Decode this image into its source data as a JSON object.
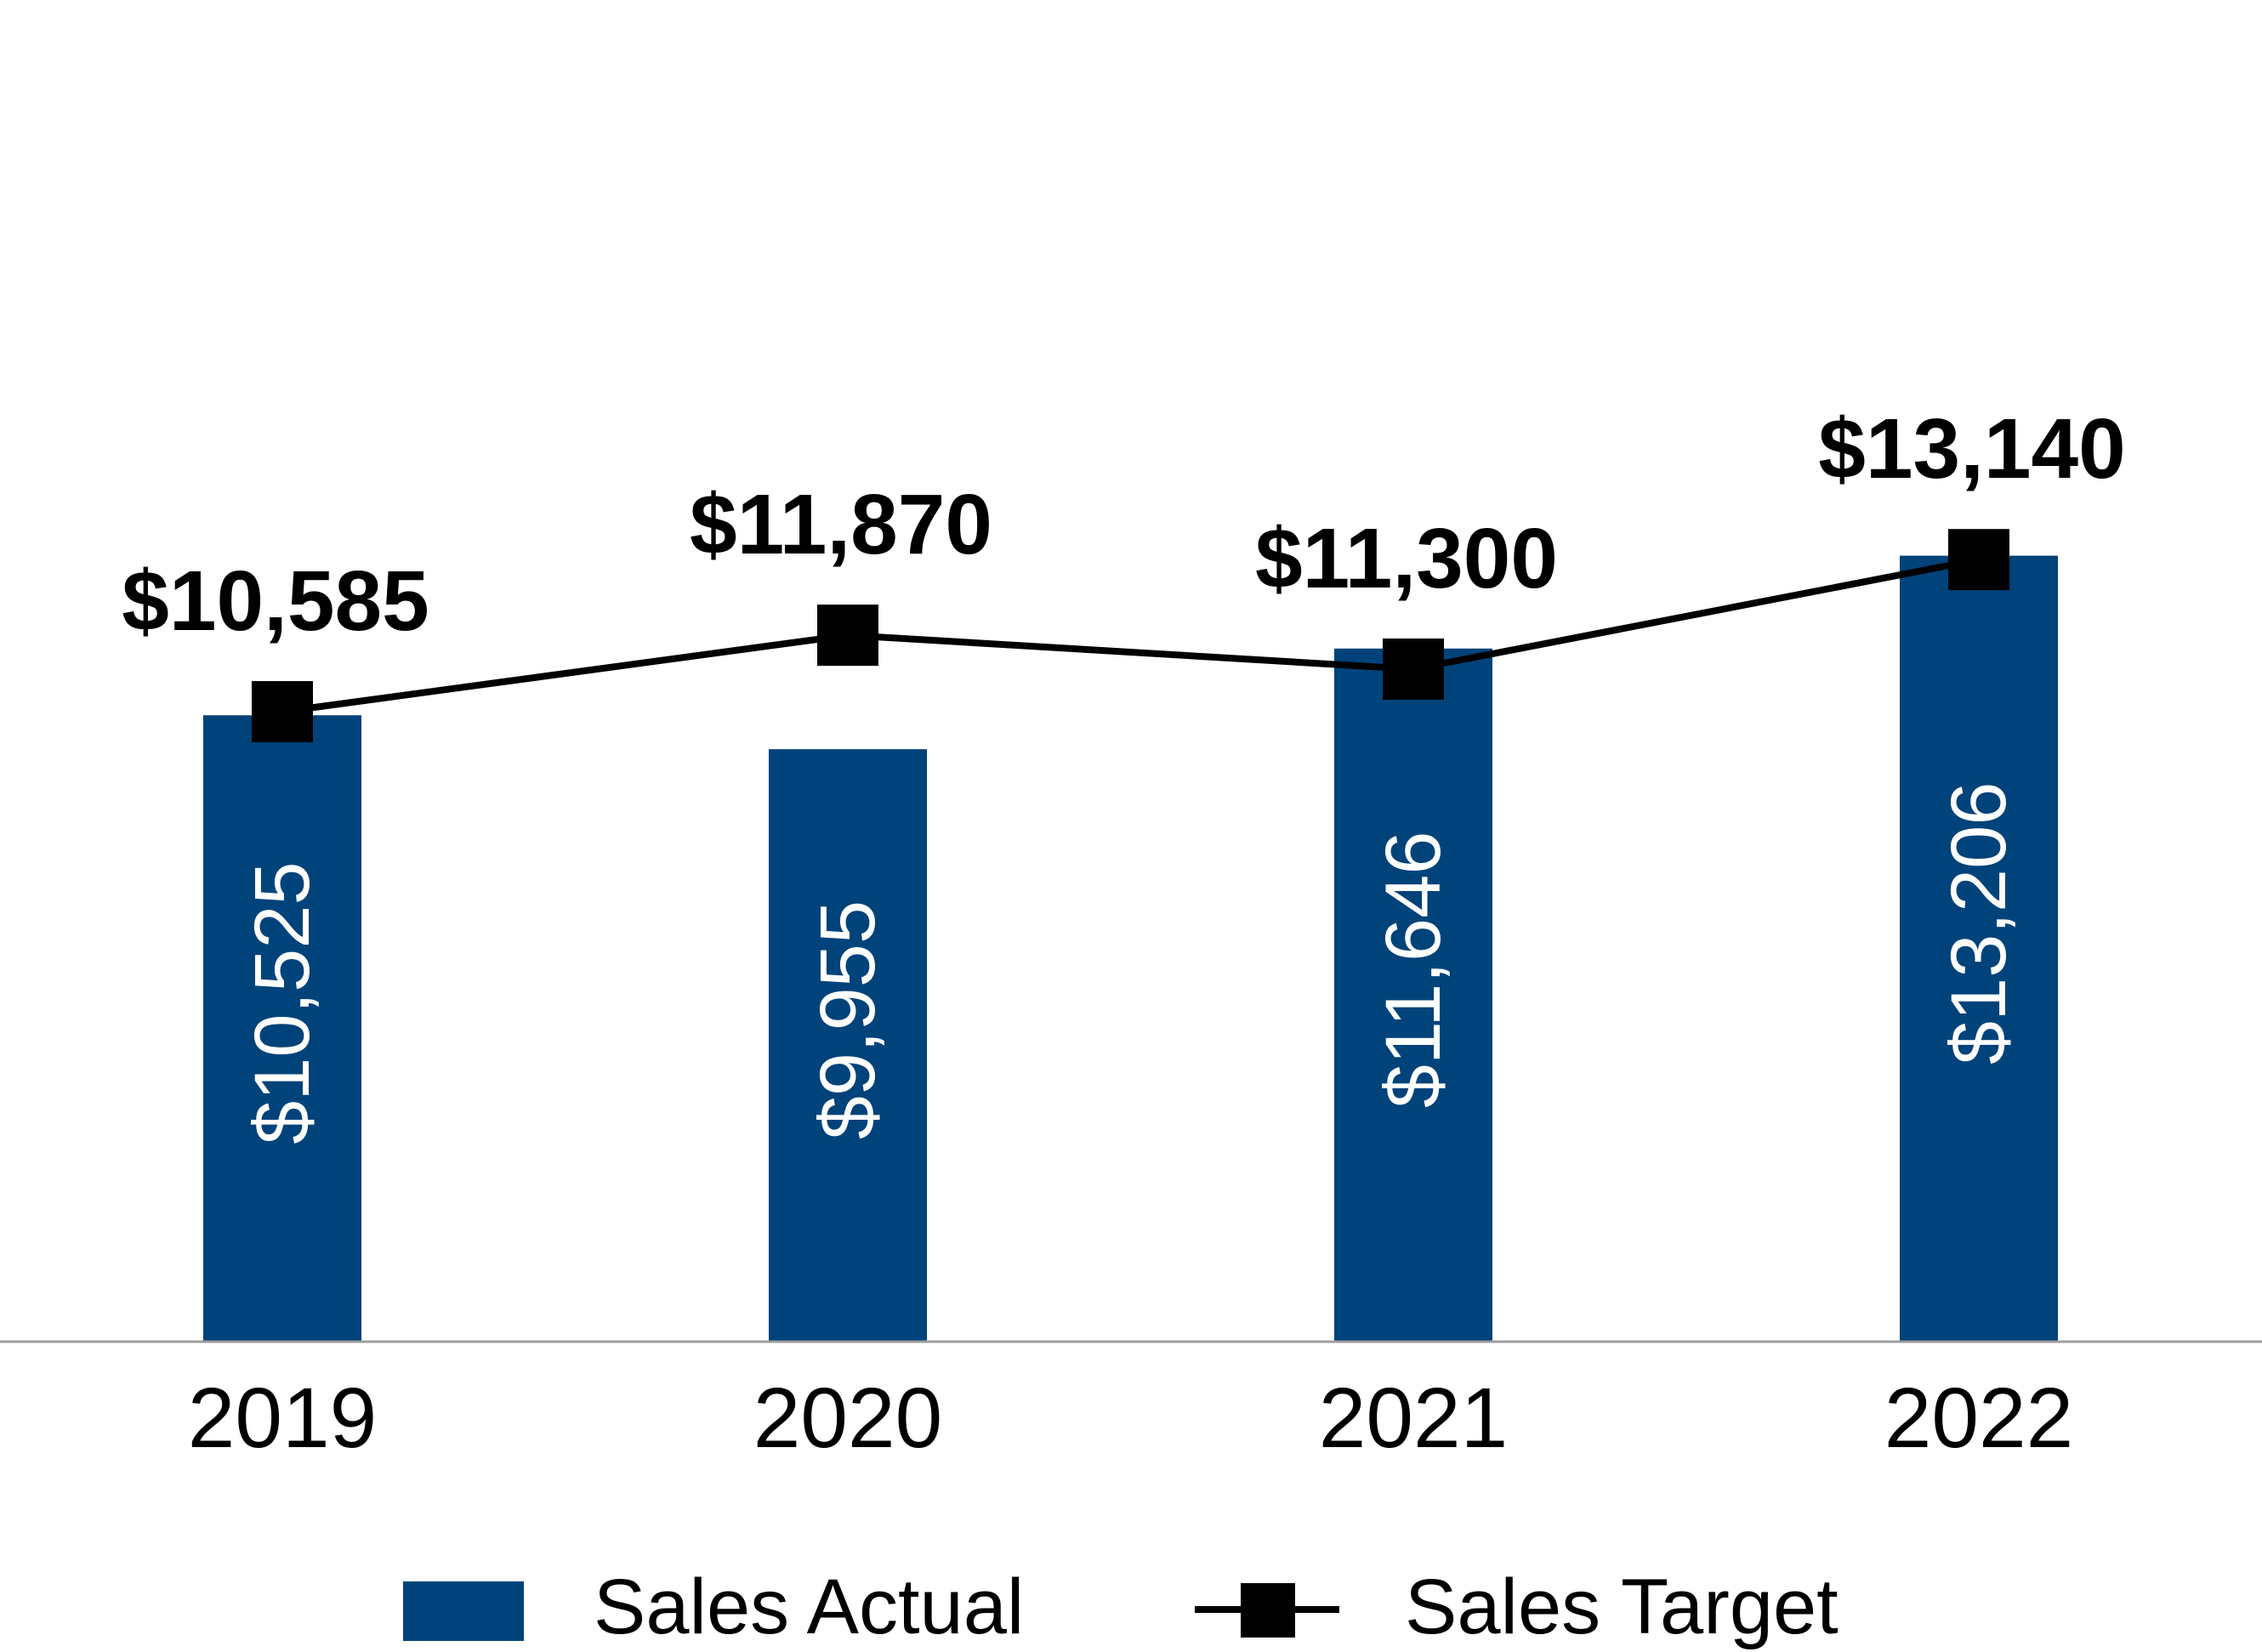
{
  "chart_data": {
    "type": "bar",
    "categories": [
      "2019",
      "2020",
      "2021",
      "2022"
    ],
    "series": [
      {
        "name": "Sales Actual",
        "kind": "bar",
        "color": "#00437a",
        "values": [
          10525,
          9955,
          11646,
          13206
        ],
        "labels": [
          "$10,525",
          "$9,955",
          "$11,646",
          "$13,206"
        ]
      },
      {
        "name": "Sales Target",
        "kind": "line",
        "color": "#000000",
        "marker": "square",
        "values": [
          10585,
          11870,
          11300,
          13140
        ],
        "labels": [
          "$10,585",
          "$11,870",
          "$11,300",
          "$13,140"
        ]
      }
    ],
    "ylim": [
      0,
      14500
    ],
    "grid": false,
    "legend": "bottom-center",
    "axis_color": "#9e9e9e"
  }
}
